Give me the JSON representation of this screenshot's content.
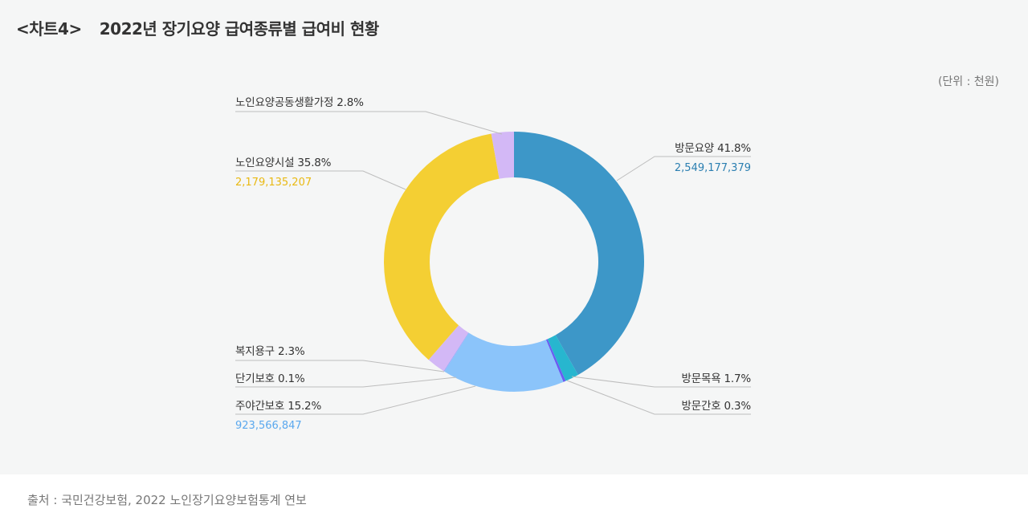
{
  "header": {
    "tag": "<차트4>",
    "title": "2022년 장기요양 급여종류별 급여비 현황"
  },
  "unit": "(단위 : 천원)",
  "source": "출처 : 국민건강보험, 2022 노인장기요양보험통계 연보",
  "labels": {
    "visit_care": "방문요양 41.8%",
    "visit_care_value": "2,549,177,379",
    "visit_bath": "방문목욕 1.7%",
    "visit_nursing": "방문간호 0.3%",
    "day_night": "주야간보호 15.2%",
    "day_night_value": "923,566,847",
    "short_term": "단기보호 0.1%",
    "welfare_equipment": "복지용구 2.3%",
    "facility": "노인요양시설 35.8%",
    "facility_value": "2,179,135,207",
    "group_home": "노인요양공동생활가정 2.8%"
  },
  "colors": {
    "visit_care": "#3d97c8",
    "visit_bath": "#27b6cf",
    "visit_nursing": "#6a5cf3",
    "day_night": "#8bc4fa",
    "short_term": "#9aa6fb",
    "welfare_equipment": "#d3b8f6",
    "facility": "#f4cf33",
    "group_home": "#d3b8f6",
    "visit_care_value_text": "#2b7fb1",
    "day_night_value_text": "#5aa8ee",
    "facility_value_text": "#e9b913"
  },
  "chart_data": {
    "type": "pie",
    "variant": "donut",
    "title": "2022년 장기요양 급여종류별 급여비 현황",
    "unit": "천원",
    "start_angle": "12 o'clock, clockwise",
    "categories": [
      "방문요양",
      "방문목욕",
      "방문간호",
      "주야간보호",
      "단기보호",
      "복지용구",
      "노인요양시설",
      "노인요양공동생활가정"
    ],
    "values_percent": [
      41.8,
      1.7,
      0.3,
      15.2,
      0.1,
      2.3,
      35.8,
      2.8
    ],
    "values_labeled": {
      "방문요양": 2549177379,
      "주야간보호": 923566847,
      "노인요양시설": 2179135207
    },
    "colors": [
      "#3d97c8",
      "#27b6cf",
      "#6a5cf3",
      "#8bc4fa",
      "#9aa6fb",
      "#d3b8f6",
      "#f4cf33",
      "#d3b8f6"
    ],
    "source": "국민건강보험, 2022 노인장기요양보험통계 연보"
  }
}
